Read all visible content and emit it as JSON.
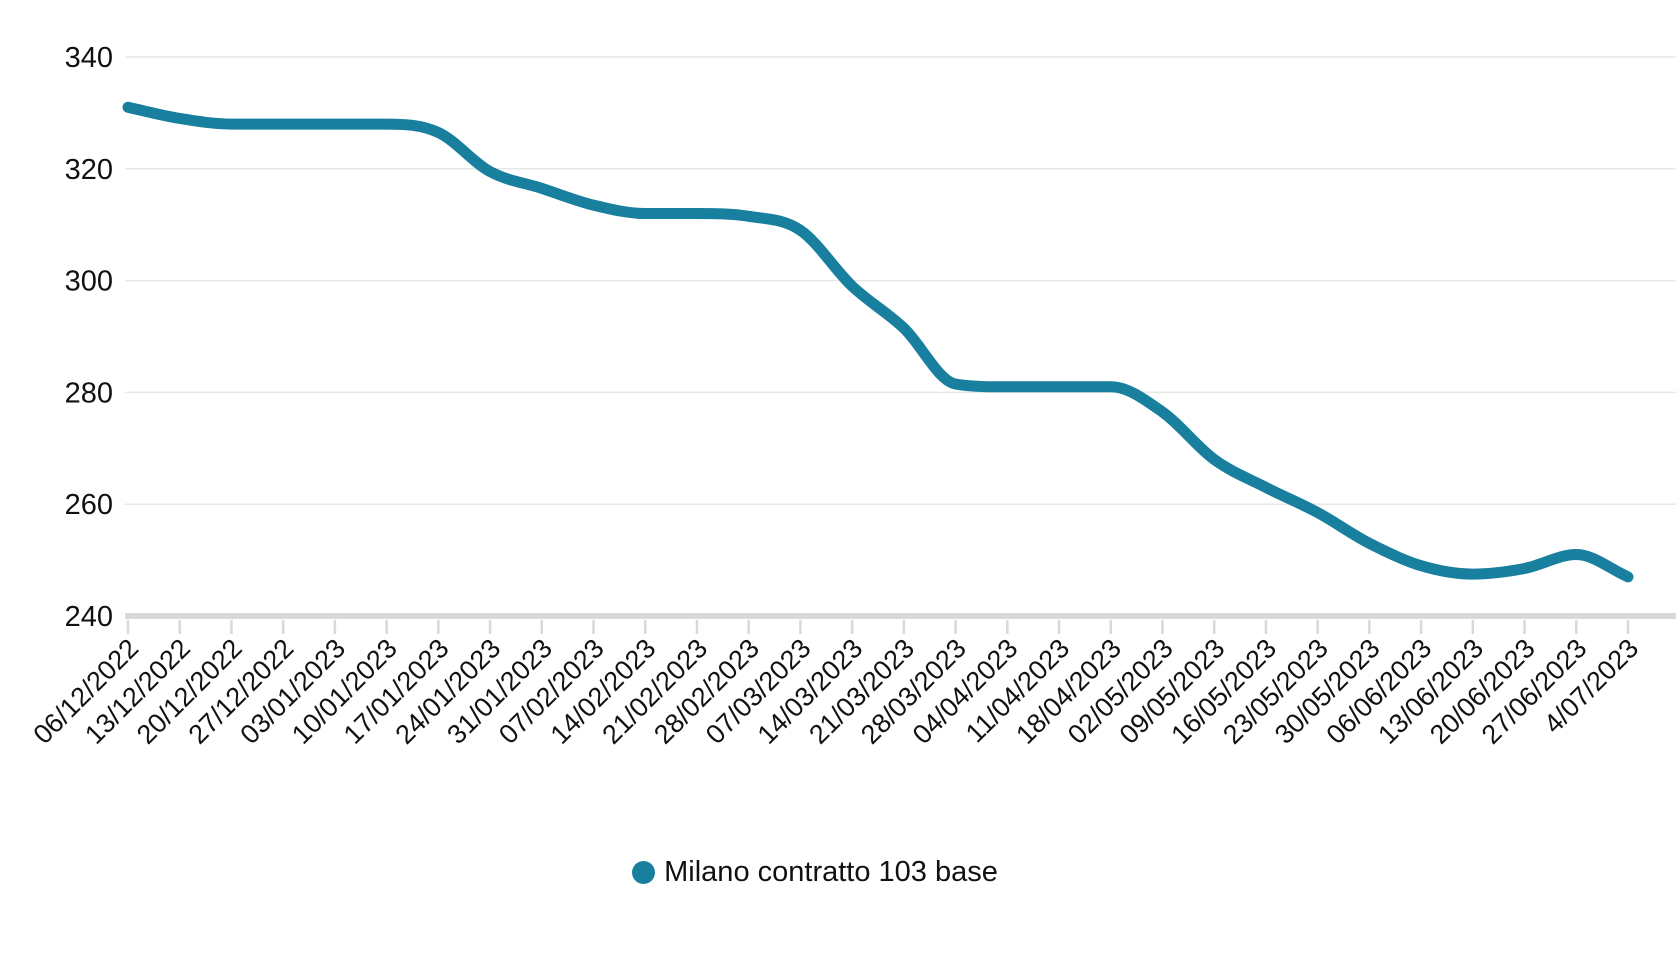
{
  "chart_data": {
    "type": "line",
    "title": "",
    "xlabel": "",
    "ylabel": "",
    "categories": [
      "06/12/2022",
      "13/12/2022",
      "20/12/2022",
      "27/12/2022",
      "03/01/2023",
      "10/01/2023",
      "17/01/2023",
      "24/01/2023",
      "31/01/2023",
      "07/02/2023",
      "14/02/2023",
      "21/02/2023",
      "28/02/2023",
      "07/03/2023",
      "14/03/2023",
      "21/03/2023",
      "28/03/2023",
      "04/04/2023",
      "11/04/2023",
      "18/04/2023",
      "02/05/2023",
      "09/05/2023",
      "16/05/2023",
      "23/05/2023",
      "30/05/2023",
      "06/06/2023",
      "13/06/2023",
      "20/06/2023",
      "27/06/2023",
      "4/07/2023"
    ],
    "series": [
      {
        "name": "Milano contratto 103 base",
        "color": "#187f9e",
        "values": [
          331,
          329,
          328,
          328,
          328,
          328,
          326.5,
          319.5,
          316.5,
          313.5,
          312,
          312,
          311.5,
          309,
          299,
          291.5,
          281.5,
          281,
          281,
          281,
          276.5,
          268,
          263,
          258.5,
          253,
          249,
          247.5,
          248.5,
          251,
          247
        ]
      }
    ],
    "ylim": [
      240,
      340
    ],
    "yticks": [
      240,
      260,
      280,
      300,
      320,
      340
    ],
    "grid": true,
    "grid_color": "#e7e7e7",
    "axis_color": "#d9d9d9",
    "text_color": "#111111",
    "x_label_rotation": -45,
    "legend_position": "bottom",
    "curve": "smoothed"
  }
}
